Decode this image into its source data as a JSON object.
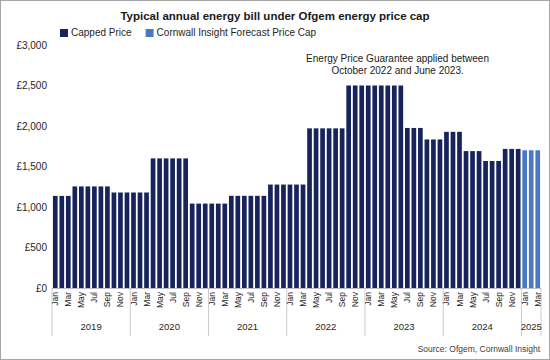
{
  "chart_data": {
    "type": "bar",
    "title": "Typical annual energy bill under Ofgem energy price cap",
    "annotation": [
      "Energy Price Guarantee applied between",
      "October 2022 and June 2023."
    ],
    "source": "Source: Ofgem, Cornwall Insight",
    "categories": [
      "Jan",
      null,
      "Mar",
      null,
      "May",
      null,
      "Jul",
      null,
      "Sep",
      null,
      "Nov",
      null,
      "Jan",
      null,
      "Mar",
      null,
      "May",
      null,
      "Jul",
      null,
      "Sep",
      null,
      "Nov",
      null,
      "Jan",
      null,
      "Mar",
      null,
      "May",
      null,
      "Jul",
      null,
      "Sep",
      null,
      "Nov",
      null,
      "Jan",
      null,
      "Mar",
      null,
      "May",
      null,
      "Jul",
      null,
      "Sep",
      null,
      "Nov",
      null,
      "Jan",
      null,
      "Mar",
      null,
      "May",
      null,
      "Jul",
      null,
      "Sep",
      null,
      "Nov",
      null,
      "Jan",
      null,
      "Mar",
      null,
      "May",
      null,
      "Jul",
      null,
      "Sep",
      null,
      "Nov",
      null,
      "Jan",
      null,
      "Mar"
    ],
    "year_labels": [
      "2019",
      "2020",
      "2021",
      "2022",
      "2023",
      "2024",
      "2025"
    ],
    "series": [
      {
        "name": "Capped Price",
        "color": "#17245c",
        "values": [
          1137,
          1137,
          1137,
          1254,
          1254,
          1254,
          1254,
          1254,
          1254,
          1179,
          1179,
          1179,
          1179,
          1179,
          1179,
          1600,
          1600,
          1600,
          1600,
          1600,
          1600,
          1042,
          1042,
          1042,
          1042,
          1042,
          1042,
          1138,
          1138,
          1138,
          1138,
          1138,
          1138,
          1277,
          1277,
          1277,
          1277,
          1277,
          1277,
          1971,
          1971,
          1971,
          1971,
          1971,
          1971,
          2500,
          2500,
          2500,
          2500,
          2500,
          2500,
          2500,
          2500,
          2500,
          1976,
          1976,
          1976,
          1834,
          1834,
          1834,
          1928,
          1928,
          1928,
          1690,
          1690,
          1690,
          1568,
          1568,
          1568,
          1717,
          1717,
          1717,
          null,
          null,
          null
        ]
      },
      {
        "name": "Cornwall Insight Forecast Price Cap",
        "color": "#4a78c2",
        "values": [
          null,
          null,
          null,
          null,
          null,
          null,
          null,
          null,
          null,
          null,
          null,
          null,
          null,
          null,
          null,
          null,
          null,
          null,
          null,
          null,
          null,
          null,
          null,
          null,
          null,
          null,
          null,
          null,
          null,
          null,
          null,
          null,
          null,
          null,
          null,
          null,
          null,
          null,
          null,
          null,
          null,
          null,
          null,
          null,
          null,
          null,
          null,
          null,
          null,
          null,
          null,
          null,
          null,
          null,
          null,
          null,
          null,
          null,
          null,
          null,
          null,
          null,
          null,
          null,
          null,
          null,
          null,
          null,
          null,
          null,
          null,
          null,
          1700,
          1700,
          1700
        ]
      }
    ],
    "ylim": [
      0,
      3000
    ],
    "yticks": [
      {
        "value": 0,
        "label": "£0"
      },
      {
        "value": 500,
        "label": "£500"
      },
      {
        "value": 1000,
        "label": "£1,000"
      },
      {
        "value": 1500,
        "label": "£1,500"
      },
      {
        "value": 2000,
        "label": "£2,000"
      },
      {
        "value": 2500,
        "label": "£2,500"
      },
      {
        "value": 3000,
        "label": "£3,000"
      }
    ],
    "grid": false,
    "stacked": true,
    "legend": "top-left"
  }
}
